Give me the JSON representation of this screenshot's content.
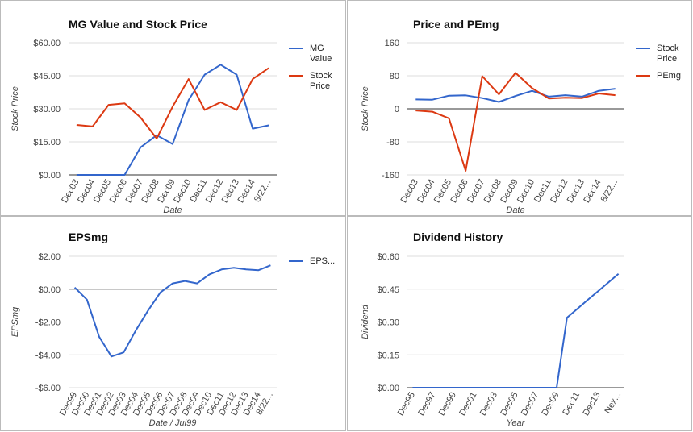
{
  "chart_data": [
    {
      "type": "line",
      "title": "MG Value and Stock Price",
      "x_label": "Date",
      "y_label": "Stock Price",
      "categories": [
        "Dec03",
        "Dec04",
        "Dec05",
        "Dec06",
        "Dec07",
        "Dec08",
        "Dec09",
        "Dec10",
        "Dec11",
        "Dec12",
        "Dec13",
        "Dec14",
        "8/22..."
      ],
      "series": [
        {
          "name": "MG Value",
          "color": "#3366cc",
          "values": [
            0,
            0,
            0,
            0,
            12.5,
            18,
            14,
            34,
            45.5,
            50,
            45.5,
            21,
            22.5
          ]
        },
        {
          "name": "Stock Price",
          "color": "#dc3912",
          "values": [
            22.7,
            22,
            31.8,
            32.5,
            26,
            16.5,
            31,
            43.5,
            29.5,
            33,
            29.5,
            43.5,
            48.5
          ]
        }
      ],
      "ylim": [
        0,
        60
      ],
      "yticks": [
        {
          "value": 0,
          "label": "$0.00"
        },
        {
          "value": 15,
          "label": "$15.00"
        },
        {
          "value": 30,
          "label": "$30.00"
        },
        {
          "value": 45,
          "label": "$45.00"
        },
        {
          "value": 60,
          "label": "$60.00"
        }
      ],
      "grid": true,
      "legend": "right"
    },
    {
      "type": "line",
      "title": "Price and PEmg",
      "x_label": "Date",
      "y_label": "Stock Price",
      "categories": [
        "Dec03",
        "Dec04",
        "Dec05",
        "Dec06",
        "Dec07",
        "Dec08",
        "Dec09",
        "Dec10",
        "Dec11",
        "Dec12",
        "Dec13",
        "Dec14",
        "8/22..."
      ],
      "series": [
        {
          "name": "Stock Price",
          "color": "#3366cc",
          "values": [
            22.7,
            22,
            31.8,
            32.5,
            26,
            16.5,
            31,
            43.5,
            29.5,
            33,
            29.5,
            43.5,
            48.5
          ]
        },
        {
          "name": "PEmg",
          "color": "#dc3912",
          "values": [
            -4,
            -7,
            -23,
            -150,
            79,
            35,
            87,
            50,
            25,
            27,
            26,
            37,
            33
          ]
        }
      ],
      "ylim": [
        -160,
        160
      ],
      "yticks": [
        -160,
        -80,
        0,
        80,
        160
      ],
      "grid": true,
      "legend": "right"
    },
    {
      "type": "line",
      "title": "EPSmg",
      "x_label": "Date / Jul99",
      "y_label": "EPSmg",
      "categories": [
        "Dec99",
        "Dec00",
        "Dec01",
        "Dec02",
        "Dec03",
        "Dec04",
        "Dec05",
        "Dec06",
        "Dec07",
        "Dec08",
        "Dec09",
        "Dec10",
        "Dec11",
        "Dec12",
        "Dec13",
        "Dec14",
        "8/22..."
      ],
      "series": [
        {
          "name": "EPS...",
          "color": "#3366cc",
          "values": [
            0.1,
            -0.64,
            -2.9,
            -4.1,
            -3.85,
            -2.5,
            -1.3,
            -0.2,
            0.35,
            0.5,
            0.35,
            0.9,
            1.2,
            1.3,
            1.2,
            1.15,
            1.45
          ]
        }
      ],
      "ylim": [
        -6,
        2
      ],
      "yticks": [
        {
          "value": -6,
          "label": "-$6.00"
        },
        {
          "value": -4,
          "label": "-$4.00"
        },
        {
          "value": -2,
          "label": "-$2.00"
        },
        {
          "value": 0,
          "label": "$0.00"
        },
        {
          "value": 2,
          "label": "$2.00"
        }
      ],
      "grid": true,
      "legend": "right"
    },
    {
      "type": "line",
      "title": "Dividend History",
      "x_label": "Year",
      "y_label": "Dividend",
      "categories": [
        "Dec95",
        null,
        "Dec97",
        null,
        "Dec99",
        null,
        "Dec01",
        null,
        "Dec03",
        null,
        "Dec05",
        null,
        "Dec07",
        null,
        "Dec09",
        null,
        "Dec11",
        null,
        "Dec13",
        null,
        "Nex..."
      ],
      "series": [
        {
          "color": "#3366cc",
          "values": [
            0,
            0,
            0,
            0,
            0,
            0,
            0,
            0,
            0,
            0,
            0,
            0,
            0,
            0,
            0,
            0.32,
            0.36,
            0.4,
            0.44,
            0.48,
            0.52
          ]
        }
      ],
      "ylim": [
        0,
        0.6
      ],
      "yticks": [
        {
          "value": 0,
          "label": "$0.00"
        },
        {
          "value": 0.15,
          "label": "$0.15"
        },
        {
          "value": 0.3,
          "label": "$0.30"
        },
        {
          "value": 0.45,
          "label": "$0.45"
        },
        {
          "value": 0.6,
          "label": "$0.60"
        }
      ],
      "grid": true
    }
  ]
}
